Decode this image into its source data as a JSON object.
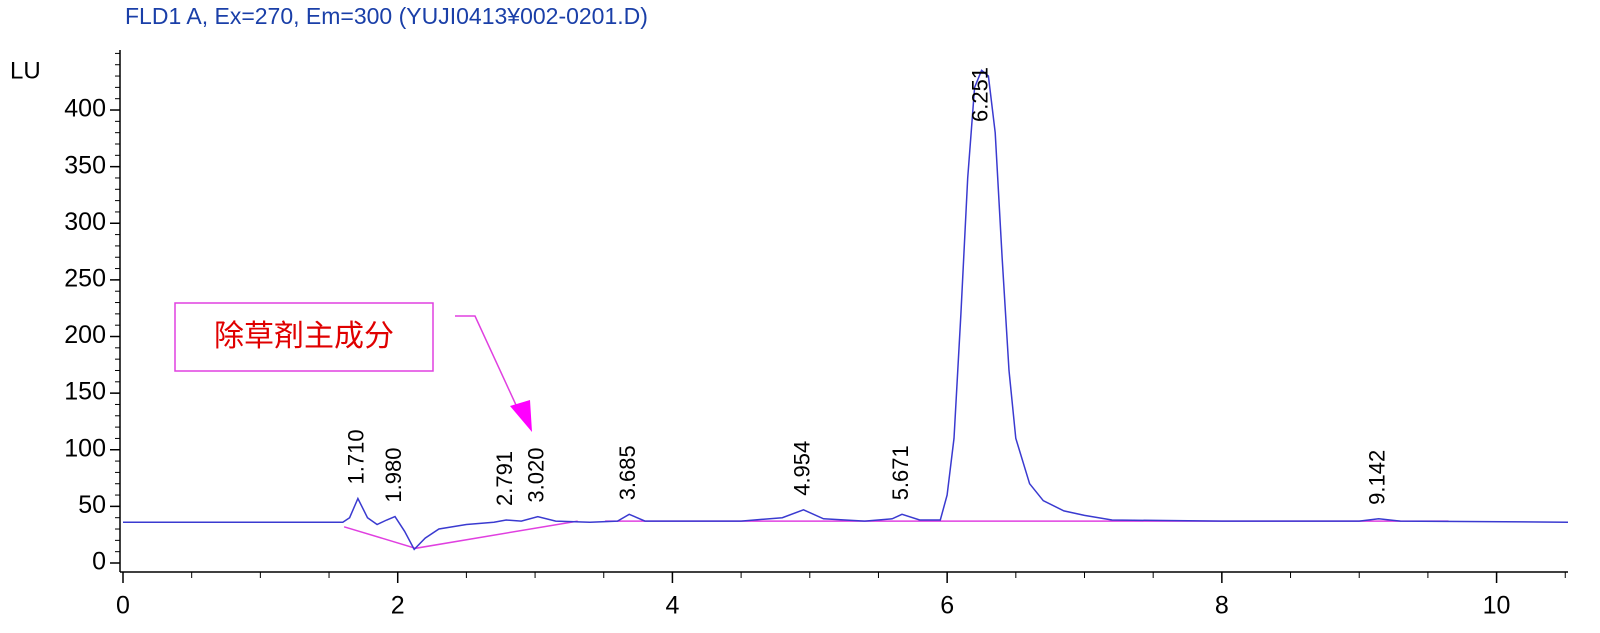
{
  "chart_data": {
    "type": "line",
    "title": "FLD1 A, Ex=270, Em=300 (YUJI0413¥002-0201.D)",
    "y_label": "LU",
    "annotation": "除草剤主成分",
    "x": [
      0,
      1.6,
      1.65,
      1.71,
      1.78,
      1.85,
      1.92,
      1.98,
      2.05,
      2.12,
      2.2,
      2.3,
      2.5,
      2.7,
      2.79,
      2.9,
      3.02,
      3.15,
      3.4,
      3.6,
      3.685,
      3.8,
      4.5,
      4.8,
      4.954,
      5.1,
      5.4,
      5.6,
      5.671,
      5.8,
      5.95,
      6.0,
      6.05,
      6.1,
      6.15,
      6.2,
      6.251,
      6.3,
      6.35,
      6.4,
      6.45,
      6.5,
      6.6,
      6.7,
      6.85,
      7.0,
      7.2,
      8.0,
      9.0,
      9.142,
      9.3,
      10.52
    ],
    "series": [
      {
        "name": "FLD1 A",
        "color": "#3a3ad0",
        "values": [
          36,
          36,
          40,
          57,
          40,
          34,
          38,
          41,
          28,
          12,
          22,
          30,
          34,
          36,
          38,
          37,
          41,
          37,
          36,
          37,
          43,
          37,
          37,
          40,
          47,
          39,
          37,
          39,
          43,
          38,
          38,
          60,
          110,
          220,
          340,
          420,
          435,
          430,
          380,
          270,
          170,
          110,
          70,
          55,
          46,
          42,
          38,
          37,
          37,
          39,
          37,
          36
        ]
      }
    ],
    "baseline": {
      "color": "#e040e0",
      "x": [
        1.61,
        2.13,
        3.31,
        3.4,
        3.51,
        9.65
      ],
      "values": [
        32,
        13,
        37,
        null,
        37,
        37
      ]
    },
    "peak_labels": [
      {
        "value": 1.71,
        "label": "1.710"
      },
      {
        "value": 1.98,
        "label": "1.980"
      },
      {
        "value": 2.791,
        "label": "2.791"
      },
      {
        "value": 3.02,
        "label": "3.020"
      },
      {
        "value": 3.685,
        "label": "3.685"
      },
      {
        "value": 4.954,
        "label": "4.954"
      },
      {
        "value": 5.671,
        "label": "5.671"
      },
      {
        "value": 6.251,
        "label": "6.251"
      },
      {
        "value": 9.142,
        "label": "9.142"
      }
    ],
    "xlim": [
      0,
      10.52
    ],
    "ylim": [
      0,
      453
    ],
    "xticks": [
      0,
      2,
      4,
      6,
      8,
      10
    ],
    "yticks": [
      0,
      50,
      100,
      150,
      200,
      250,
      300,
      350,
      400
    ]
  }
}
